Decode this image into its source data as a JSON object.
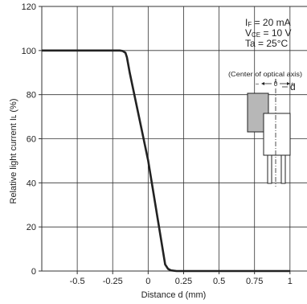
{
  "chart_data": {
    "type": "line",
    "xlabel": "Distance d (mm)",
    "ylabel": "Relative light current Iʟ (%)",
    "xlim": [
      -0.75,
      1.12
    ],
    "ylim": [
      0,
      120
    ],
    "x_ticks": [
      -0.5,
      -0.25,
      0,
      0.25,
      0.5,
      0.75,
      1
    ],
    "x_tick_labels": [
      "-0.5",
      "-0.25",
      "0",
      "0.25",
      "0.5",
      "0.75",
      "1"
    ],
    "y_ticks": [
      0,
      20,
      40,
      60,
      80,
      100,
      120
    ],
    "y_tick_labels": [
      "0",
      "20",
      "40",
      "60",
      "80",
      "100",
      "120"
    ],
    "grid": true,
    "series": [
      {
        "x": [
          -0.75,
          -0.2,
          -0.18,
          -0.16,
          -0.15,
          -0.13,
          0,
          0.12,
          0.14,
          0.16,
          0.2,
          1
        ],
        "y": [
          100,
          100,
          99.8,
          99,
          97,
          90,
          50,
          3,
          1,
          0.3,
          0,
          0
        ]
      }
    ],
    "conditions": [
      {
        "main": "I",
        "sub": "F",
        "rest": " = 20 mA"
      },
      {
        "main": "V",
        "sub": "CE",
        "rest": " = 10 V"
      },
      {
        "main": "Ta = 25°C",
        "sub": "",
        "rest": ""
      }
    ],
    "inset": {
      "caption": "(Center of optical axis)",
      "minus": "−",
      "zero": "0",
      "plus": "+",
      "d_label": "d"
    },
    "colors": {
      "line": "#222222",
      "grid": "#333333",
      "shade": "#b7b7b7"
    }
  }
}
